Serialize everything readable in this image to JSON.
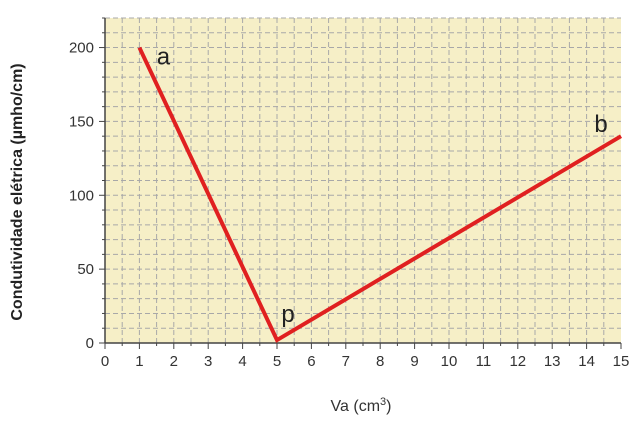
{
  "chart_data": {
    "type": "line",
    "title": "",
    "xlabel": "Va (cm",
    "xlabel_sup": "3",
    "xlabel_end": ")",
    "ylabel": "Condutividade elétrica (µmho/cm)",
    "xlim": [
      0,
      15
    ],
    "ylim": [
      0,
      220
    ],
    "x_ticks": [
      0,
      1,
      2,
      3,
      4,
      5,
      6,
      7,
      8,
      9,
      10,
      11,
      12,
      13,
      14,
      15
    ],
    "y_ticks": [
      0,
      50,
      100,
      150,
      200
    ],
    "grid": true,
    "series": [
      {
        "x": [
          1,
          5,
          15
        ],
        "y": [
          200,
          2,
          140
        ],
        "color": "#e02020"
      }
    ],
    "annotations": [
      {
        "text": "a",
        "x": 1,
        "y": 200
      },
      {
        "text": "p",
        "x": 5,
        "y": 2
      },
      {
        "text": "b",
        "x": 15,
        "y": 140
      }
    ],
    "colors": {
      "plot_bg": "#f6efc7",
      "grid": "#a8a8a8",
      "line": "#e02020"
    }
  }
}
